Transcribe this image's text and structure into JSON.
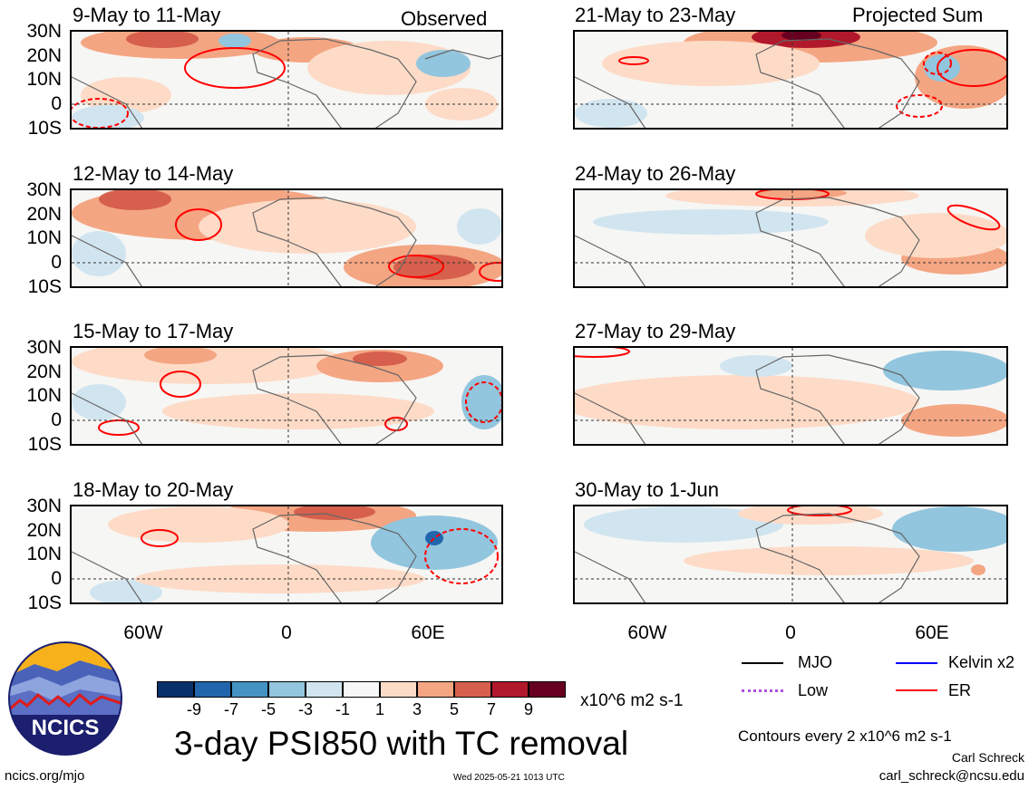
{
  "panels": [
    {
      "title": "9-May to 11-May",
      "tag": "Observed"
    },
    {
      "title": "12-May to 14-May",
      "tag": ""
    },
    {
      "title": "15-May to 17-May",
      "tag": ""
    },
    {
      "title": "18-May to 20-May",
      "tag": ""
    },
    {
      "title": "21-May to 23-May",
      "tag": "Projected Sum"
    },
    {
      "title": "24-May to 26-May",
      "tag": ""
    },
    {
      "title": "27-May to 29-May",
      "tag": ""
    },
    {
      "title": "30-May to 1-Jun",
      "tag": ""
    }
  ],
  "lat_labels": [
    "30N",
    "20N",
    "10N",
    "0",
    "10S"
  ],
  "lon_labels": [
    "60W",
    "0",
    "60E"
  ],
  "legend": {
    "mjo": "MJO",
    "kelvin": "Kelvin x2",
    "low": "Low",
    "er": "ER",
    "colors": {
      "mjo": "#000000",
      "kelvin": "#0000ff",
      "low": "#b050e0",
      "er": "#ff0000"
    }
  },
  "colorbar": {
    "ticks": [
      "-9",
      "-7",
      "-5",
      "-3",
      "-1",
      "1",
      "3",
      "5",
      "7",
      "9"
    ],
    "colors": [
      "#08306b",
      "#2166ac",
      "#4393c3",
      "#92c5de",
      "#d1e5f0",
      "#f7f7f7",
      "#fddbc7",
      "#f4a582",
      "#d6604d",
      "#b2182b",
      "#67001f"
    ],
    "units": "x10^6 m2 s-1"
  },
  "main_title": "3-day PSI850 with TC removal",
  "contours_note": "Contours every 2 x10^6 m2 s-1",
  "author": "Carl Schreck",
  "email": "carl_schreck@ncsu.edu",
  "site": "ncics.org/mjo",
  "timestamp": "Wed 2025-05-21 1013 UTC",
  "logo_text": "NCICS"
}
